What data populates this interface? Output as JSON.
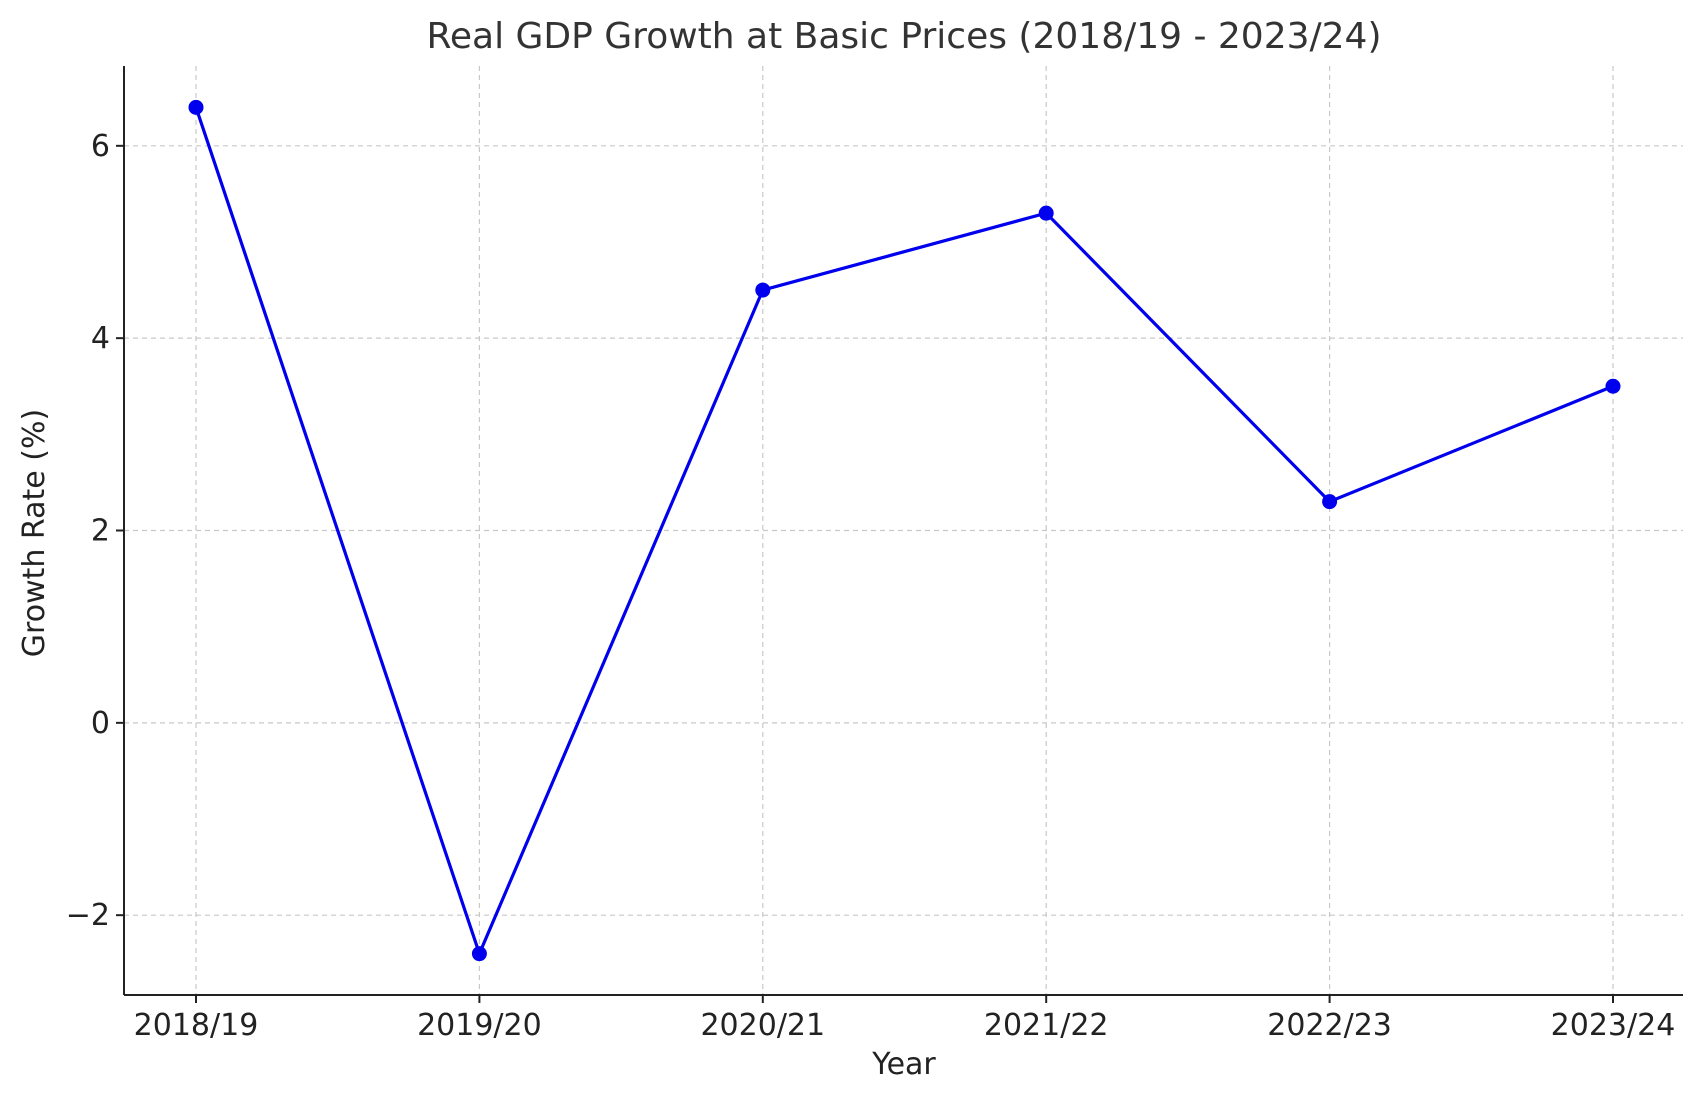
{
  "chart_data": {
    "type": "line",
    "title": "Real GDP Growth at Basic Prices (2018/19 - 2023/24)",
    "xlabel": "Year",
    "ylabel": "Growth Rate (%)",
    "categories": [
      "2018/19",
      "2019/20",
      "2020/21",
      "2021/22",
      "2022/23",
      "2023/24"
    ],
    "series": [
      {
        "values": [
          6.4,
          -2.4,
          4.5,
          5.3,
          2.3,
          3.5
        ],
        "color": "#0000ee",
        "marker": "circle"
      }
    ],
    "ylim": [
      -2.83,
      6.83
    ],
    "yticks": [
      -2,
      0,
      2,
      4,
      6
    ],
    "ytick_labels": [
      "−2",
      "0",
      "2",
      "4",
      "6"
    ],
    "grid": true,
    "grid_style": "dashed"
  }
}
